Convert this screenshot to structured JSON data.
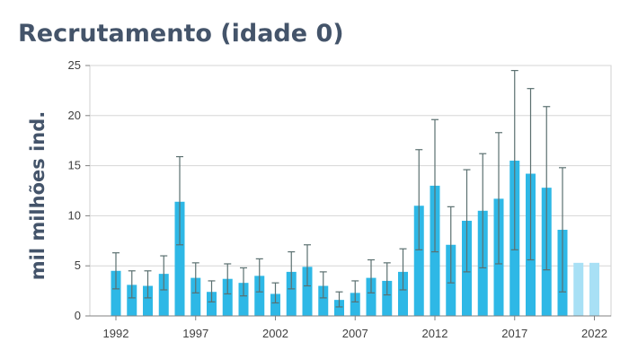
{
  "title": "Recrutamento (idade 0)",
  "chart_data": {
    "type": "bar",
    "title": "Recrutamento (idade 0)",
    "xlabel": "",
    "ylabel": "mil milhões ind.",
    "ylim": [
      0,
      25
    ],
    "yticks": [
      0,
      5,
      10,
      15,
      20,
      25
    ],
    "xticks": [
      1992,
      1997,
      2002,
      2007,
      2012,
      2017,
      2022
    ],
    "grid": true,
    "legend": "none",
    "series": [
      {
        "color": "#2eb8e6",
        "errorbar_color": "#5b7070",
        "points": [
          {
            "year": 1992,
            "value": 4.5,
            "low": 2.7,
            "high": 6.3
          },
          {
            "year": 1993,
            "value": 3.1,
            "low": 1.8,
            "high": 4.5
          },
          {
            "year": 1994,
            "value": 3.0,
            "low": 1.8,
            "high": 4.5
          },
          {
            "year": 1995,
            "value": 4.2,
            "low": 2.6,
            "high": 6.0
          },
          {
            "year": 1996,
            "value": 11.4,
            "low": 7.1,
            "high": 15.9
          },
          {
            "year": 1997,
            "value": 3.8,
            "low": 2.3,
            "high": 5.3
          },
          {
            "year": 1998,
            "value": 2.4,
            "low": 1.4,
            "high": 3.5
          },
          {
            "year": 1999,
            "value": 3.7,
            "low": 2.2,
            "high": 5.2
          },
          {
            "year": 2000,
            "value": 3.3,
            "low": 2.0,
            "high": 4.8
          },
          {
            "year": 2001,
            "value": 4.0,
            "low": 2.4,
            "high": 5.7
          },
          {
            "year": 2002,
            "value": 2.2,
            "low": 1.3,
            "high": 3.3
          },
          {
            "year": 2003,
            "value": 4.4,
            "low": 2.7,
            "high": 6.4
          },
          {
            "year": 2004,
            "value": 4.9,
            "low": 3.0,
            "high": 7.1
          },
          {
            "year": 2005,
            "value": 3.0,
            "low": 1.8,
            "high": 4.4
          },
          {
            "year": 2006,
            "value": 1.6,
            "low": 0.9,
            "high": 2.4
          },
          {
            "year": 2007,
            "value": 2.3,
            "low": 1.4,
            "high": 3.5
          },
          {
            "year": 2008,
            "value": 3.8,
            "low": 2.3,
            "high": 5.6
          },
          {
            "year": 2009,
            "value": 3.5,
            "low": 2.1,
            "high": 5.3
          },
          {
            "year": 2010,
            "value": 4.4,
            "low": 2.6,
            "high": 6.7
          },
          {
            "year": 2011,
            "value": 11.0,
            "low": 6.6,
            "high": 16.6
          },
          {
            "year": 2012,
            "value": 13.0,
            "low": 6.4,
            "high": 19.6
          },
          {
            "year": 2013,
            "value": 7.1,
            "low": 3.3,
            "high": 10.9
          },
          {
            "year": 2014,
            "value": 9.5,
            "low": 4.4,
            "high": 14.6
          },
          {
            "year": 2015,
            "value": 10.5,
            "low": 4.8,
            "high": 16.2
          },
          {
            "year": 2016,
            "value": 11.7,
            "low": 5.2,
            "high": 18.3
          },
          {
            "year": 2017,
            "value": 15.5,
            "low": 6.6,
            "high": 24.5
          },
          {
            "year": 2018,
            "value": 14.2,
            "low": 5.6,
            "high": 22.7
          },
          {
            "year": 2019,
            "value": 12.8,
            "low": 4.6,
            "high": 20.9
          },
          {
            "year": 2020,
            "value": 8.6,
            "low": 2.4,
            "high": 14.8
          }
        ]
      },
      {
        "color": "#a8e0f5",
        "points": [
          {
            "year": 2021,
            "value": 5.3
          },
          {
            "year": 2022,
            "value": 5.3
          }
        ]
      }
    ]
  }
}
